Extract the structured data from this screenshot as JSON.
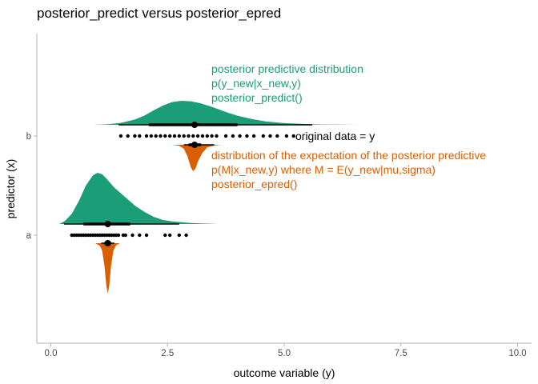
{
  "chart_data": {
    "type": "halfeye",
    "title": "posterior_predict versus posterior_epred",
    "xlabel": "outcome variable (y)",
    "ylabel": "predictor (x)",
    "xlim": [
      -0.3,
      10.3
    ],
    "xticks": [
      0.0,
      2.5,
      5.0,
      7.5,
      10.0
    ],
    "xtick_labels": [
      "0.0",
      "2.5",
      "5.0",
      "7.5",
      "10.0"
    ],
    "categories": [
      "a",
      "b"
    ],
    "colors": {
      "posterior_predict": "#1b9e77",
      "posterior_epred": "#d95f02",
      "points": "#000000"
    },
    "groups": [
      {
        "category": "a",
        "predict": {
          "density_x": [
            0.18,
            0.3,
            0.45,
            0.6,
            0.75,
            0.9,
            1.0,
            1.1,
            1.2,
            1.35,
            1.5,
            1.65,
            1.8,
            2.0,
            2.2,
            2.4,
            2.6,
            2.8,
            3.0,
            3.2,
            3.4,
            3.58
          ],
          "density_y": [
            0.0,
            0.06,
            0.2,
            0.45,
            0.75,
            0.95,
            1.0,
            0.97,
            0.88,
            0.72,
            0.6,
            0.48,
            0.36,
            0.24,
            0.14,
            0.08,
            0.05,
            0.035,
            0.02,
            0.012,
            0.006,
            0.0
          ],
          "median": 1.22,
          "interval_66": [
            0.7,
            1.7
          ],
          "interval_95": [
            0.28,
            2.75
          ]
        },
        "epred": {
          "density_x": [
            0.95,
            1.05,
            1.1,
            1.15,
            1.19,
            1.22,
            1.25,
            1.29,
            1.34,
            1.4,
            1.48
          ],
          "density_y": [
            0.0,
            0.05,
            0.15,
            0.45,
            0.85,
            1.0,
            0.85,
            0.45,
            0.15,
            0.04,
            0.0
          ],
          "median": 1.22,
          "interval_66": [
            1.15,
            1.29
          ],
          "interval_95": [
            1.08,
            1.36
          ]
        },
        "data_points": [
          0.45,
          0.5,
          0.55,
          0.6,
          0.65,
          0.7,
          0.75,
          0.8,
          0.85,
          0.9,
          0.95,
          1.0,
          1.05,
          1.1,
          1.15,
          1.2,
          1.25,
          1.3,
          1.35,
          1.4,
          1.45,
          1.55,
          1.6,
          1.75,
          1.9,
          2.05,
          2.45,
          2.55,
          2.75,
          2.9
        ]
      },
      {
        "category": "b",
        "predict": {
          "density_x": [
            0.9,
            1.2,
            1.5,
            1.8,
            2.0,
            2.2,
            2.4,
            2.6,
            2.8,
            3.0,
            3.2,
            3.4,
            3.6,
            3.8,
            4.0,
            4.3,
            4.6,
            5.0,
            5.4,
            5.8,
            6.2,
            6.6
          ],
          "density_y": [
            0.0,
            0.02,
            0.08,
            0.22,
            0.38,
            0.6,
            0.8,
            0.95,
            1.0,
            0.98,
            0.9,
            0.78,
            0.64,
            0.5,
            0.38,
            0.24,
            0.14,
            0.07,
            0.035,
            0.015,
            0.005,
            0.0
          ],
          "median": 3.08,
          "interval_66": [
            2.1,
            4.0
          ],
          "interval_95": [
            1.45,
            5.6
          ]
        },
        "epred": {
          "density_x": [
            2.6,
            2.75,
            2.85,
            2.93,
            3.0,
            3.05,
            3.1,
            3.16,
            3.25,
            3.35,
            3.5,
            3.65
          ],
          "density_y": [
            0.0,
            0.04,
            0.15,
            0.45,
            0.85,
            1.0,
            0.9,
            0.6,
            0.3,
            0.1,
            0.03,
            0.0
          ],
          "median": 3.08,
          "interval_66": [
            2.95,
            3.22
          ],
          "interval_95": [
            2.85,
            3.5
          ]
        },
        "data_points": [
          1.5,
          1.65,
          1.8,
          1.9,
          2.05,
          2.15,
          2.25,
          2.35,
          2.45,
          2.55,
          2.65,
          2.75,
          2.85,
          2.95,
          3.05,
          3.15,
          3.25,
          3.35,
          3.45,
          3.55,
          3.75,
          3.9,
          4.05,
          4.2,
          4.35,
          4.55,
          4.7,
          4.85,
          5.05,
          5.2
        ]
      }
    ],
    "annotations": [
      {
        "target": "posterior_predict",
        "color": "#1b9e77",
        "lines": [
          "posterior predictive distribution",
          "p(y_new|x_new,y)",
          "posterior_predict()"
        ]
      },
      {
        "target": "original_data",
        "color": "#000000",
        "lines": [
          "original data = y"
        ]
      },
      {
        "target": "posterior_epred",
        "color": "#d95f02",
        "lines": [
          "distribution of the expectation of the posterior predictive",
          "p(M|x_new,y) where M = E(y_new|mu,sigma)",
          "posterior_epred()"
        ]
      }
    ]
  }
}
